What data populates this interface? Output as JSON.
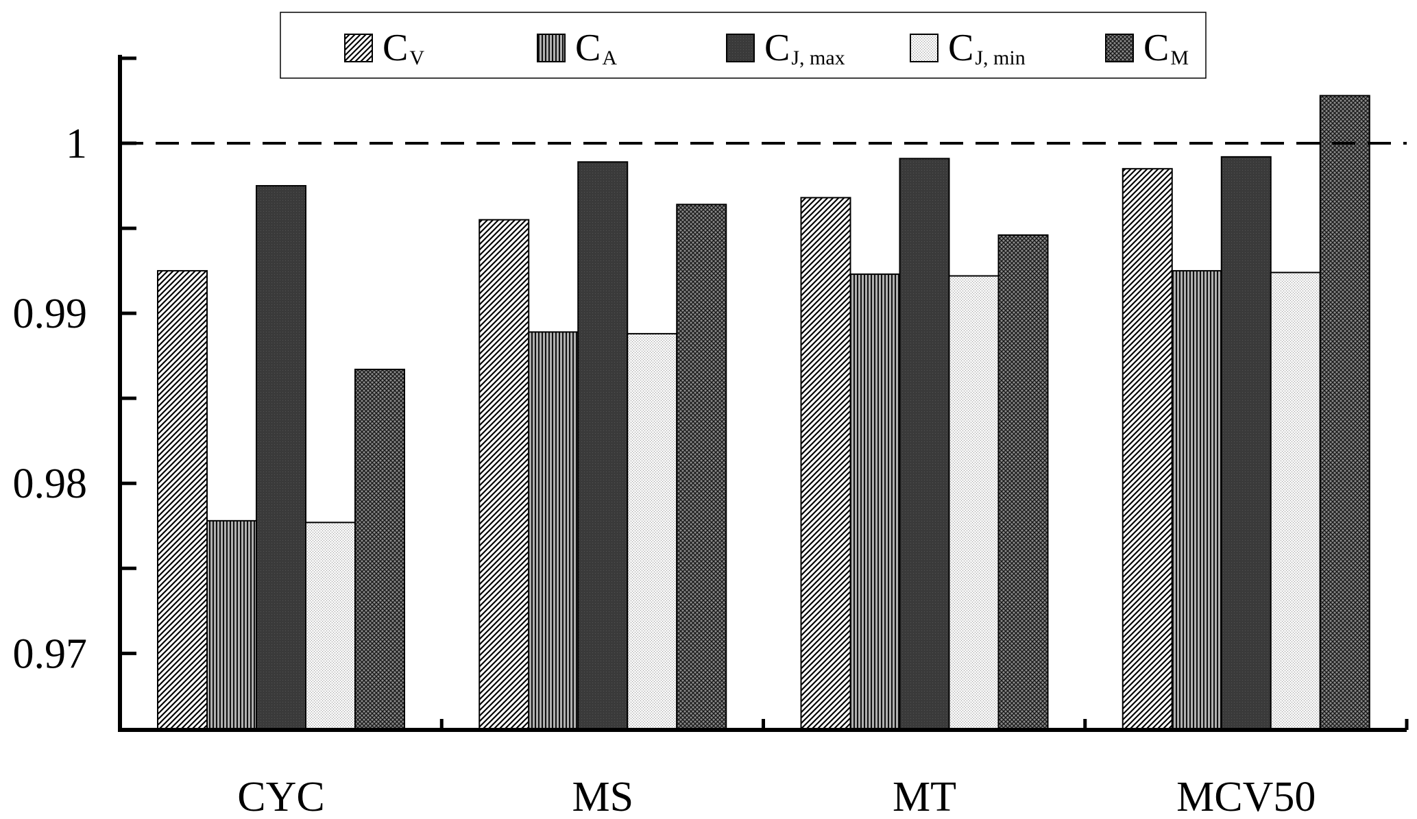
{
  "chart_data": {
    "type": "bar",
    "title": "",
    "xlabel": "",
    "ylabel": "",
    "categories": [
      "CYC",
      "MS",
      "MT",
      "MCV50"
    ],
    "series": [
      {
        "name": "C_V",
        "label_main": "C",
        "label_sub": "V",
        "values": [
          0.9925,
          0.9955,
          0.9968,
          0.9985
        ]
      },
      {
        "name": "C_A",
        "label_main": "C",
        "label_sub": "A",
        "values": [
          0.9778,
          0.9889,
          0.9923,
          0.9925
        ]
      },
      {
        "name": "C_J,max",
        "label_main": "C",
        "label_sub": "J, max",
        "values": [
          0.9975,
          0.9989,
          0.9991,
          0.9992
        ]
      },
      {
        "name": "C_J,min",
        "label_main": "C",
        "label_sub": "J, min",
        "values": [
          0.9777,
          0.9888,
          0.9922,
          0.9924
        ]
      },
      {
        "name": "C_M",
        "label_main": "C",
        "label_sub": "M",
        "values": [
          0.9867,
          0.9964,
          0.9946,
          1.0028
        ]
      }
    ],
    "ylim": [
      0.9655,
      1.0052
    ],
    "yticks": [
      0.97,
      0.98,
      0.99,
      1
    ],
    "ytick_labels": [
      "0.97",
      "0.98",
      "0.99",
      "1"
    ],
    "reference_line": {
      "value": 1.0,
      "style": "dashed"
    },
    "legend": {
      "position": "top-center"
    },
    "grid": false
  }
}
